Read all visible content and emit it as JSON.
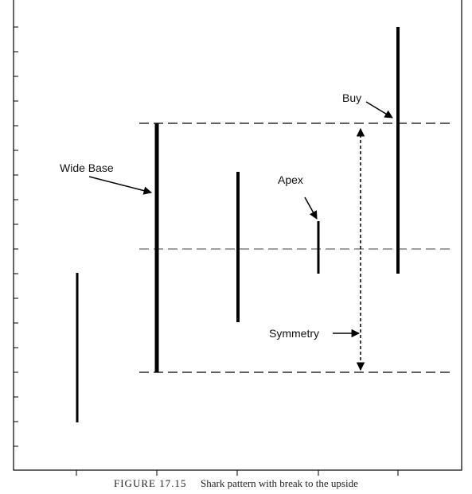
{
  "annotations": {
    "wide_base": "Wide Base",
    "apex": "Apex",
    "buy": "Buy",
    "symmetry": "Symmetry"
  },
  "figure": {
    "label": "FIGURE 17.15",
    "caption": "Shark pattern with break to the upside"
  }
}
